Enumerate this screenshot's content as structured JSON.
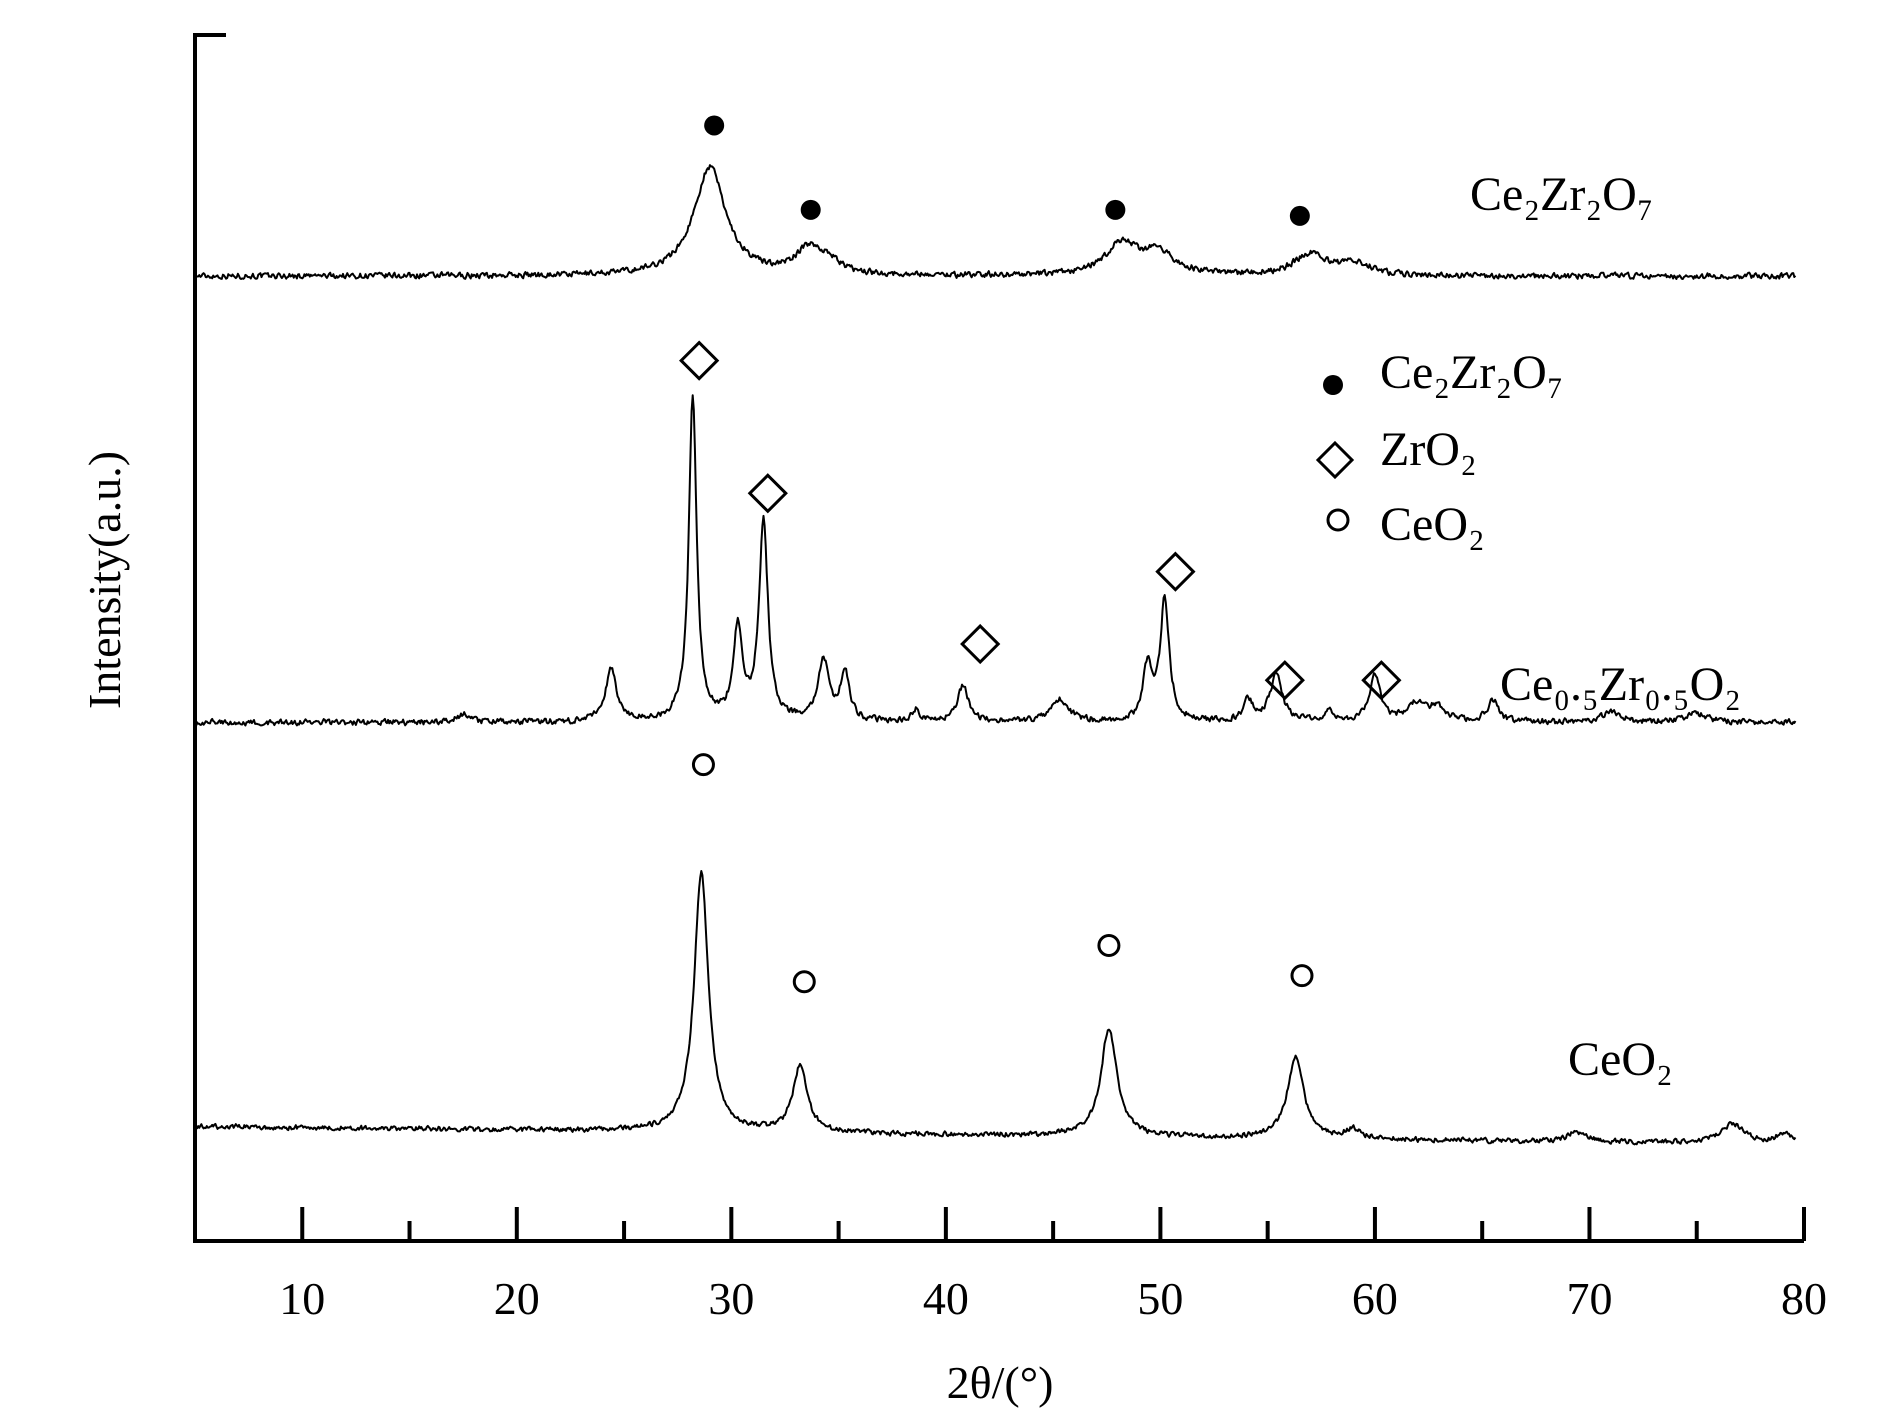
{
  "chart_data": {
    "type": "line",
    "xlabel": "2θ/(°)",
    "ylabel": "Intensity(a.u.)",
    "xlim": [
      5,
      80
    ],
    "x_ticks_major": [
      10,
      20,
      30,
      40,
      50,
      60,
      70,
      80
    ],
    "x_ticks_minor": [
      15,
      25,
      35,
      45,
      55,
      65,
      75
    ],
    "y_ticks": "none",
    "grid": false,
    "legend_position": "upper-right",
    "legend": [
      {
        "phase": "Ce2Zr2O7",
        "label": "Ce₂Zr₂O₇",
        "marker": "filled-circle"
      },
      {
        "phase": "ZrO2",
        "label": "ZrO₂",
        "marker": "open-diamond"
      },
      {
        "phase": "CeO2",
        "label": "CeO₂",
        "marker": "open-circle"
      }
    ],
    "series": [
      {
        "label": "Ce₂Zr₂O₇",
        "baseline": 0.8,
        "noise": 0.003,
        "peaks": [
          {
            "x": 29.0,
            "h": 0.09,
            "w": 0.9
          },
          {
            "x": 33.6,
            "h": 0.02,
            "w": 0.7
          },
          {
            "x": 34.5,
            "h": 0.01,
            "w": 0.7
          },
          {
            "x": 48.2,
            "h": 0.026,
            "w": 0.9
          },
          {
            "x": 49.9,
            "h": 0.018,
            "w": 0.9
          },
          {
            "x": 57.0,
            "h": 0.018,
            "w": 0.9
          },
          {
            "x": 59.1,
            "h": 0.01,
            "w": 0.8
          }
        ],
        "phase_markers": [
          {
            "x": 29.2,
            "y": 0.925,
            "phase": "Ce2Zr2O7"
          },
          {
            "x": 33.7,
            "y": 0.855,
            "phase": "Ce2Zr2O7"
          },
          {
            "x": 47.9,
            "y": 0.855,
            "phase": "Ce2Zr2O7"
          },
          {
            "x": 56.5,
            "y": 0.85,
            "phase": "Ce2Zr2O7"
          }
        ]
      },
      {
        "label": "Ce₀.₅Zr₀.₅O₂",
        "baseline": 0.43,
        "noise": 0.003,
        "peaks": [
          {
            "x": 17.5,
            "h": 0.006,
            "w": 0.4
          },
          {
            "x": 24.4,
            "h": 0.045,
            "w": 0.3
          },
          {
            "x": 28.2,
            "h": 0.27,
            "w": 0.22
          },
          {
            "x": 30.3,
            "h": 0.075,
            "w": 0.25
          },
          {
            "x": 31.5,
            "h": 0.165,
            "w": 0.25
          },
          {
            "x": 34.3,
            "h": 0.05,
            "w": 0.3
          },
          {
            "x": 35.3,
            "h": 0.04,
            "w": 0.25
          },
          {
            "x": 38.6,
            "h": 0.01,
            "w": 0.2
          },
          {
            "x": 40.8,
            "h": 0.03,
            "w": 0.3
          },
          {
            "x": 45.3,
            "h": 0.018,
            "w": 0.5
          },
          {
            "x": 49.4,
            "h": 0.045,
            "w": 0.25
          },
          {
            "x": 50.2,
            "h": 0.1,
            "w": 0.25
          },
          {
            "x": 54.1,
            "h": 0.018,
            "w": 0.25
          },
          {
            "x": 55.4,
            "h": 0.038,
            "w": 0.35
          },
          {
            "x": 57.9,
            "h": 0.008,
            "w": 0.3
          },
          {
            "x": 60.0,
            "h": 0.04,
            "w": 0.3
          },
          {
            "x": 61.9,
            "h": 0.014,
            "w": 0.5
          },
          {
            "x": 62.9,
            "h": 0.012,
            "w": 0.5
          },
          {
            "x": 65.5,
            "h": 0.018,
            "w": 0.3
          },
          {
            "x": 71.0,
            "h": 0.008,
            "w": 0.5
          },
          {
            "x": 75.0,
            "h": 0.007,
            "w": 0.6
          }
        ],
        "phase_markers": [
          {
            "x": 28.5,
            "y": 0.73,
            "phase": "ZrO2"
          },
          {
            "x": 31.7,
            "y": 0.62,
            "phase": "ZrO2"
          },
          {
            "x": 41.6,
            "y": 0.495,
            "phase": "ZrO2"
          },
          {
            "x": 50.7,
            "y": 0.555,
            "phase": "ZrO2"
          },
          {
            "x": 55.8,
            "y": 0.465,
            "phase": "ZrO2"
          },
          {
            "x": 60.3,
            "y": 0.465,
            "phase": "ZrO2"
          }
        ]
      },
      {
        "label": "CeO₂",
        "baseline": 0.095,
        "noise": 0.0025,
        "slope": -0.0002,
        "peaks": [
          {
            "x": 28.6,
            "h": 0.215,
            "w": 0.4
          },
          {
            "x": 33.2,
            "h": 0.055,
            "w": 0.4
          },
          {
            "x": 47.6,
            "h": 0.09,
            "w": 0.45
          },
          {
            "x": 56.3,
            "h": 0.068,
            "w": 0.45
          },
          {
            "x": 59.0,
            "h": 0.008,
            "w": 0.4
          },
          {
            "x": 69.4,
            "h": 0.008,
            "w": 0.5
          },
          {
            "x": 76.7,
            "h": 0.016,
            "w": 0.7
          },
          {
            "x": 79.1,
            "h": 0.009,
            "w": 0.4
          }
        ],
        "phase_markers": [
          {
            "x": 28.7,
            "y": 0.395,
            "phase": "CeO2"
          },
          {
            "x": 33.4,
            "y": 0.215,
            "phase": "CeO2"
          },
          {
            "x": 47.6,
            "y": 0.245,
            "phase": "CeO2"
          },
          {
            "x": 56.6,
            "y": 0.22,
            "phase": "CeO2"
          }
        ]
      }
    ]
  }
}
